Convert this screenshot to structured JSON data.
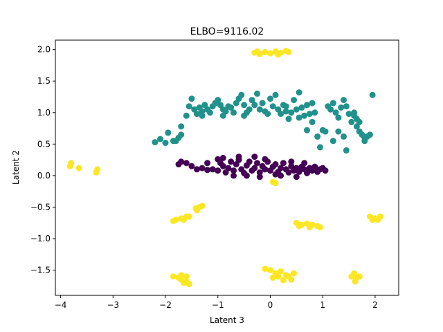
{
  "chart_data": {
    "type": "scatter",
    "title": "ELBO=9116.02",
    "xlabel": "Latent 3",
    "ylabel": "Latent 2",
    "xlim": [
      -4.1,
      2.45
    ],
    "ylim": [
      -1.9,
      2.15
    ],
    "xticks": [
      -4,
      -3,
      -2,
      -1,
      0,
      1,
      2
    ],
    "yticks": [
      -1.5,
      -1.0,
      -0.5,
      0.0,
      0.5,
      1.0,
      1.5,
      2.0
    ],
    "xtick_labels": [
      "−4",
      "−3",
      "−2",
      "−1",
      "0",
      "1",
      "2"
    ],
    "ytick_labels": [
      "−1.5",
      "−1.0",
      "−0.5",
      "0.0",
      "0.5",
      "1.0",
      "1.5",
      "2.0"
    ],
    "grid": false,
    "series": [
      {
        "color": "#440154",
        "points": [
          [
            -1.7,
            0.22
          ],
          [
            -1.75,
            0.18
          ],
          [
            -1.6,
            0.2
          ],
          [
            -1.5,
            0.15
          ],
          [
            -1.4,
            0.1
          ],
          [
            -1.3,
            0.12
          ],
          [
            -1.2,
            0.09
          ],
          [
            -1.1,
            0.1
          ],
          [
            -1.0,
            0.08
          ],
          [
            -0.95,
            0.2
          ],
          [
            -0.9,
            0.15
          ],
          [
            -0.85,
            0.05
          ],
          [
            -0.8,
            0.12
          ],
          [
            -0.75,
            0.22
          ],
          [
            -0.7,
            0.08
          ],
          [
            -0.65,
            0.18
          ],
          [
            -0.6,
            0.25
          ],
          [
            -0.55,
            0.1
          ],
          [
            -0.5,
            0.04
          ],
          [
            -0.45,
            0.16
          ],
          [
            -0.4,
            0.22
          ],
          [
            -0.35,
            0.08
          ],
          [
            -0.3,
            0.12
          ],
          [
            -0.25,
            0.2
          ],
          [
            -0.2,
            0.05
          ],
          [
            -0.15,
            0.15
          ],
          [
            -0.1,
            0.1
          ],
          [
            -0.05,
            0.22
          ],
          [
            0.0,
            0.08
          ],
          [
            0.05,
            0.14
          ],
          [
            0.1,
            0.18
          ],
          [
            0.15,
            0.06
          ],
          [
            0.2,
            0.12
          ],
          [
            0.25,
            0.2
          ],
          [
            0.3,
            0.1
          ],
          [
            0.35,
            0.05
          ],
          [
            0.4,
            0.15
          ],
          [
            0.45,
            0.08
          ],
          [
            0.5,
            0.12
          ],
          [
            0.55,
            0.06
          ],
          [
            0.6,
            0.14
          ],
          [
            0.65,
            0.1
          ],
          [
            0.7,
            0.04
          ],
          [
            0.75,
            0.12
          ],
          [
            0.8,
            0.08
          ],
          [
            0.85,
            0.14
          ],
          [
            0.9,
            0.06
          ],
          [
            0.95,
            0.1
          ],
          [
            1.0,
            0.12
          ],
          [
            1.05,
            0.08
          ],
          [
            -1.0,
            0.26
          ],
          [
            -0.6,
            0.3
          ],
          [
            -0.3,
            0.3
          ],
          [
            -0.7,
            0.0
          ],
          [
            -0.2,
            -0.02
          ],
          [
            0.2,
            0.0
          ],
          [
            0.5,
            -0.02
          ],
          [
            -1.2,
            0.2
          ],
          [
            -0.9,
            0.28
          ],
          [
            0.4,
            0.22
          ],
          [
            -0.45,
            0.0
          ],
          [
            0.65,
            0.2
          ],
          [
            -0.1,
            0.26
          ],
          [
            0.1,
            0.02
          ]
        ]
      },
      {
        "color": "#21918c",
        "points": [
          [
            -2.2,
            0.53
          ],
          [
            -2.1,
            0.58
          ],
          [
            -2.0,
            0.52
          ],
          [
            -1.95,
            0.68
          ],
          [
            -1.85,
            0.55
          ],
          [
            -1.8,
            0.55
          ],
          [
            -1.75,
            0.6
          ],
          [
            -1.7,
            0.78
          ],
          [
            -1.7,
            0.65
          ],
          [
            -1.6,
            0.95
          ],
          [
            -1.55,
            1.1
          ],
          [
            -1.5,
            1.22
          ],
          [
            -1.45,
            1.05
          ],
          [
            -1.4,
            0.98
          ],
          [
            -1.35,
            1.08
          ],
          [
            -1.3,
            1.02
          ],
          [
            -1.25,
            1.12
          ],
          [
            -1.2,
            1.05
          ],
          [
            -1.15,
            1.0
          ],
          [
            -1.1,
            1.1
          ],
          [
            -1.05,
            1.15
          ],
          [
            -1.0,
            1.2
          ],
          [
            -0.95,
            1.12
          ],
          [
            -0.9,
            1.05
          ],
          [
            -0.85,
            1.02
          ],
          [
            -0.8,
            1.1
          ],
          [
            -0.75,
            1.08
          ],
          [
            -0.7,
            1.0
          ],
          [
            -0.65,
            1.15
          ],
          [
            -0.6,
            1.22
          ],
          [
            -0.55,
            1.28
          ],
          [
            -0.5,
            1.12
          ],
          [
            -0.45,
            1.0
          ],
          [
            -0.4,
            1.05
          ],
          [
            -0.35,
            1.2
          ],
          [
            -0.3,
            1.12
          ],
          [
            -0.25,
            1.3
          ],
          [
            -0.2,
            1.05
          ],
          [
            -0.15,
            1.15
          ],
          [
            -0.1,
            1.02
          ],
          [
            -0.05,
            0.98
          ],
          [
            0.0,
            1.22
          ],
          [
            0.05,
            1.1
          ],
          [
            0.1,
            1.28
          ],
          [
            0.15,
            1.05
          ],
          [
            0.2,
            0.98
          ],
          [
            0.25,
            1.12
          ],
          [
            0.3,
            1.02
          ],
          [
            0.35,
            0.9
          ],
          [
            0.4,
            1.0
          ],
          [
            0.45,
            1.2
          ],
          [
            0.5,
            1.05
          ],
          [
            0.55,
            0.92
          ],
          [
            0.6,
            1.08
          ],
          [
            0.55,
            1.32
          ],
          [
            0.7,
            1.12
          ],
          [
            0.75,
            0.98
          ],
          [
            0.8,
            0.85
          ],
          [
            0.85,
            1.0
          ],
          [
            0.7,
            0.72
          ],
          [
            0.65,
            0.95
          ],
          [
            0.9,
            0.62
          ],
          [
            0.95,
            0.45
          ],
          [
            1.0,
            0.72
          ],
          [
            1.05,
            0.7
          ],
          [
            1.1,
            1.1
          ],
          [
            1.15,
            1.05
          ],
          [
            1.2,
            1.15
          ],
          [
            1.25,
            1.0
          ],
          [
            1.3,
            0.92
          ],
          [
            1.35,
            1.08
          ],
          [
            1.4,
            1.2
          ],
          [
            1.45,
            1.1
          ],
          [
            1.5,
            0.98
          ],
          [
            1.55,
            0.85
          ],
          [
            1.6,
            0.95
          ],
          [
            1.65,
            0.78
          ],
          [
            1.7,
            0.7
          ],
          [
            1.75,
            0.65
          ],
          [
            1.8,
            0.6
          ],
          [
            1.85,
            0.62
          ],
          [
            1.9,
            0.65
          ],
          [
            1.95,
            1.28
          ],
          [
            1.6,
            1.0
          ],
          [
            1.4,
            0.62
          ],
          [
            1.45,
            0.4
          ],
          [
            1.2,
            0.55
          ],
          [
            1.3,
            0.7
          ],
          [
            1.8,
            0.55
          ],
          [
            1.65,
            0.9
          ],
          [
            -0.9,
            0.95
          ],
          [
            -0.5,
            0.95
          ],
          [
            0.3,
            1.1
          ],
          [
            -1.3,
            0.95
          ],
          [
            0.8,
            1.15
          ],
          [
            1.7,
            0.85
          ]
        ]
      },
      {
        "color": "#fde725",
        "points": [
          [
            -0.3,
            1.95
          ],
          [
            -0.2,
            1.93
          ],
          [
            -0.1,
            1.96
          ],
          [
            0.0,
            1.94
          ],
          [
            0.1,
            1.97
          ],
          [
            0.2,
            1.95
          ],
          [
            0.3,
            1.98
          ],
          [
            0.35,
            1.96
          ],
          [
            -0.25,
            1.97
          ],
          [
            0.15,
            1.92
          ],
          [
            -3.8,
            0.2
          ],
          [
            -3.82,
            0.15
          ],
          [
            -3.65,
            0.12
          ],
          [
            -3.3,
            0.1
          ],
          [
            -3.32,
            0.05
          ],
          [
            0.1,
            -0.12
          ],
          [
            0.05,
            -0.1
          ],
          [
            -1.85,
            -0.72
          ],
          [
            -1.8,
            -0.7
          ],
          [
            -1.7,
            -0.68
          ],
          [
            -1.6,
            -0.65
          ],
          [
            -1.65,
            -0.7
          ],
          [
            -1.55,
            -0.65
          ],
          [
            -1.4,
            -0.55
          ],
          [
            -1.35,
            -0.5
          ],
          [
            -1.3,
            -0.48
          ],
          [
            -1.42,
            -0.52
          ],
          [
            0.5,
            -0.75
          ],
          [
            0.6,
            -0.78
          ],
          [
            0.7,
            -0.76
          ],
          [
            0.8,
            -0.78
          ],
          [
            0.9,
            -0.8
          ],
          [
            0.95,
            -0.82
          ],
          [
            0.75,
            -0.82
          ],
          [
            0.55,
            -0.8
          ],
          [
            1.9,
            -0.65
          ],
          [
            2.0,
            -0.68
          ],
          [
            2.1,
            -0.65
          ],
          [
            2.05,
            -0.7
          ],
          [
            1.95,
            -0.7
          ],
          [
            -1.85,
            -1.6
          ],
          [
            -1.75,
            -1.62
          ],
          [
            -1.7,
            -1.65
          ],
          [
            -1.65,
            -1.7
          ],
          [
            -1.6,
            -1.68
          ],
          [
            -1.55,
            -1.72
          ],
          [
            -1.7,
            -1.58
          ],
          [
            -1.6,
            -1.6
          ],
          [
            -0.1,
            -1.48
          ],
          [
            0.0,
            -1.5
          ],
          [
            0.1,
            -1.55
          ],
          [
            0.2,
            -1.52
          ],
          [
            0.3,
            -1.58
          ],
          [
            0.35,
            -1.6
          ],
          [
            0.4,
            -1.65
          ],
          [
            0.15,
            -1.6
          ],
          [
            0.05,
            -1.62
          ],
          [
            0.25,
            -1.66
          ],
          [
            0.45,
            -1.55
          ],
          [
            1.55,
            -1.6
          ],
          [
            1.65,
            -1.62
          ],
          [
            1.7,
            -1.6
          ],
          [
            1.6,
            -1.55
          ],
          [
            1.62,
            -1.68
          ]
        ]
      }
    ]
  }
}
